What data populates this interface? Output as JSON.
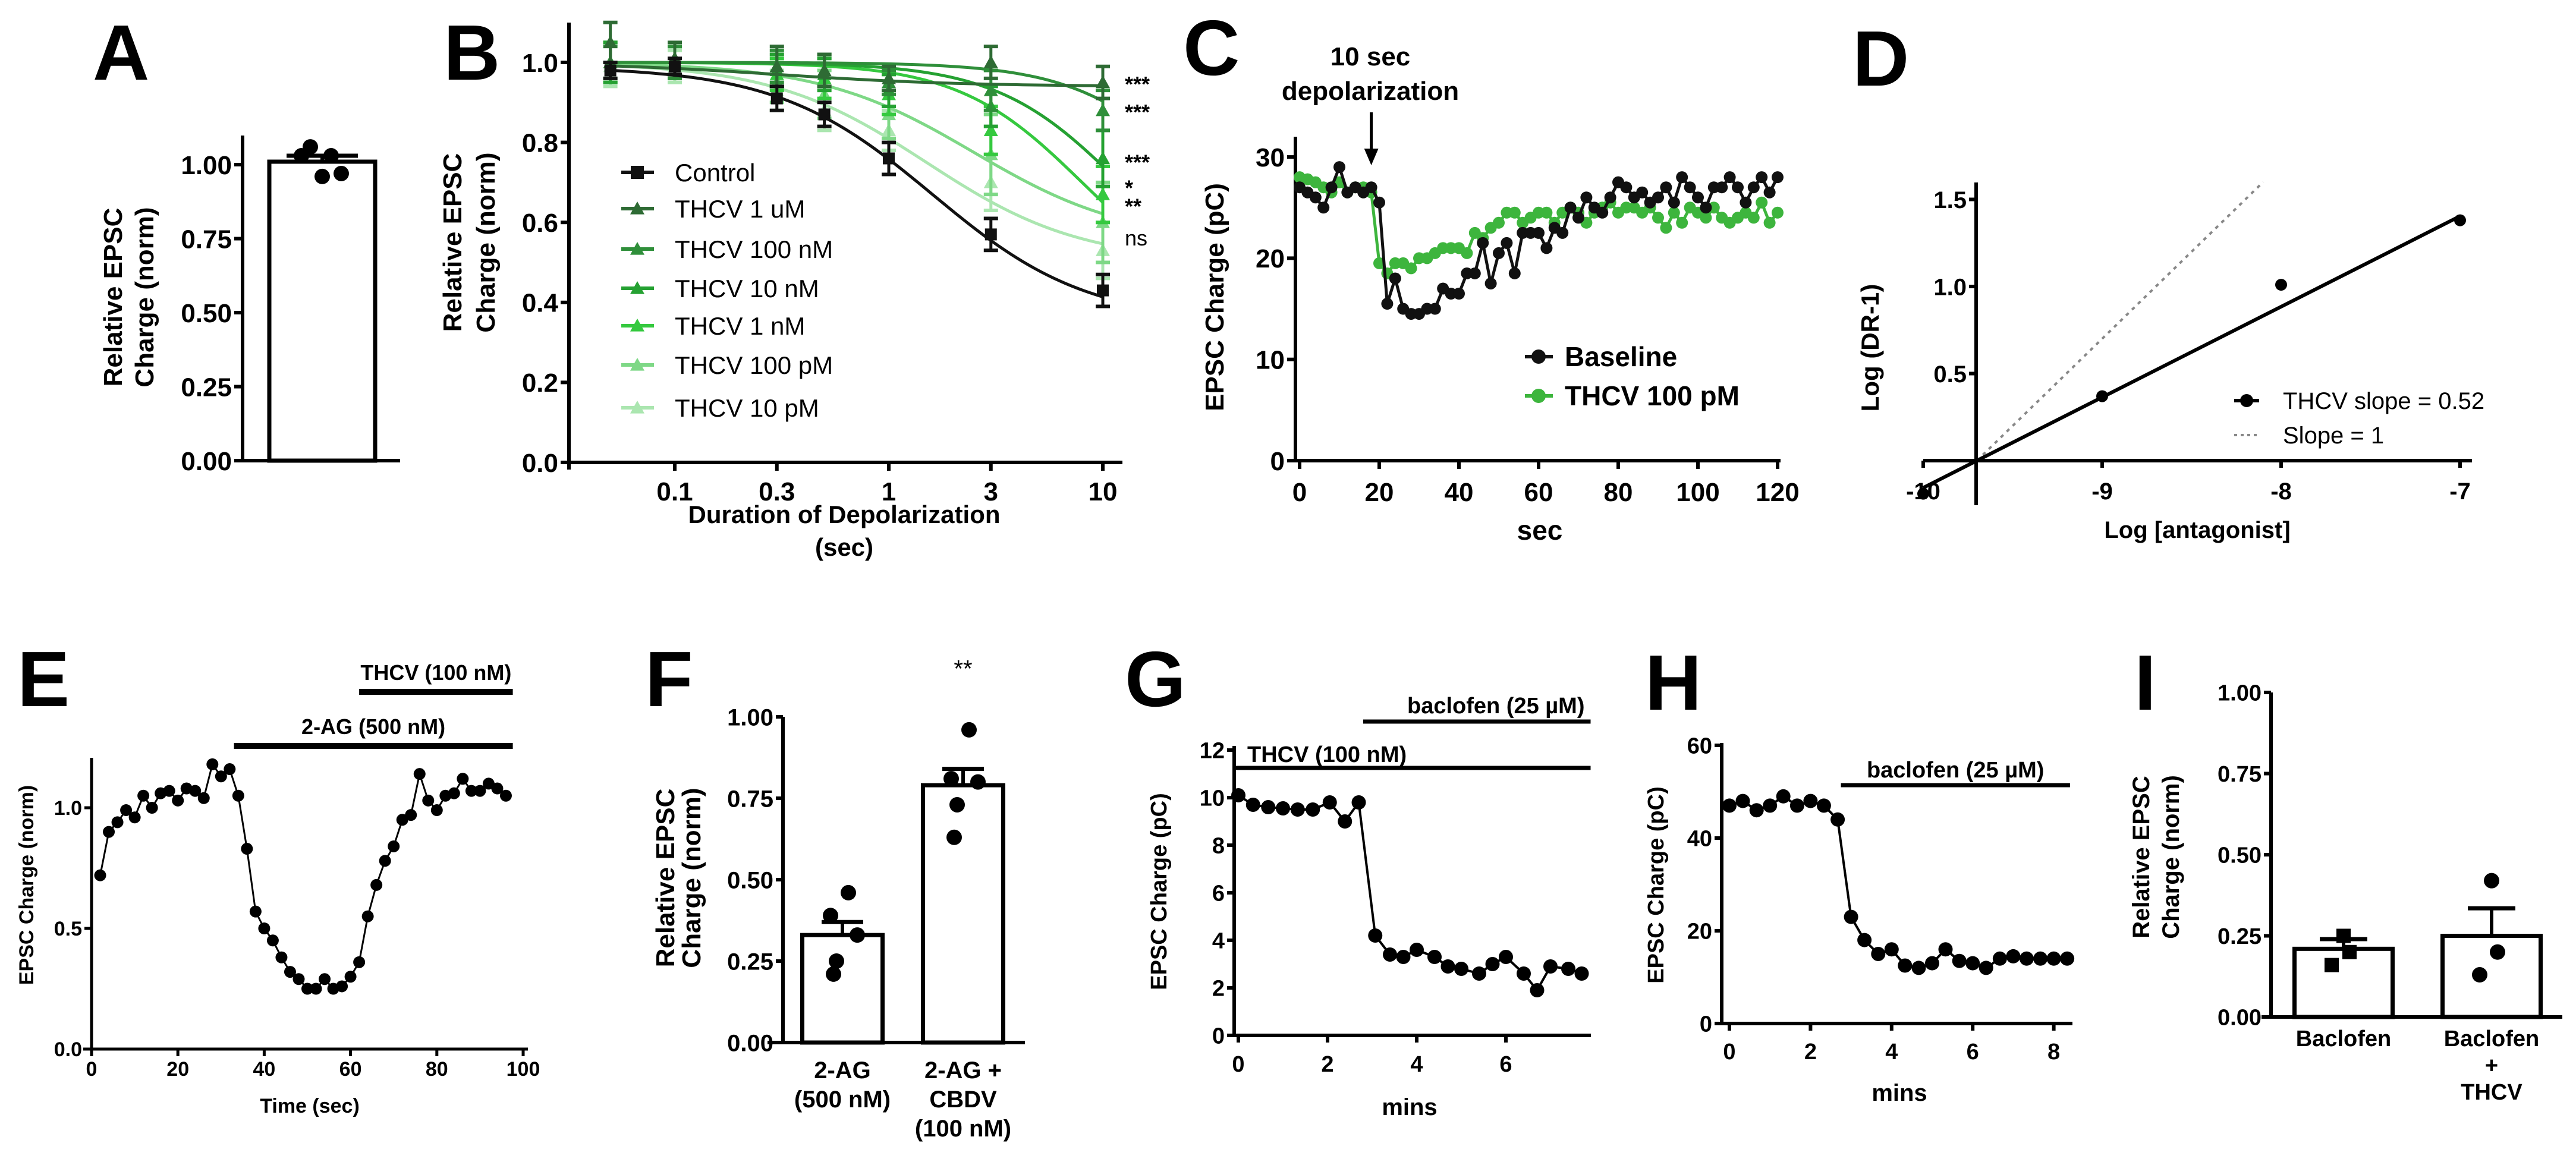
{
  "chart_data": [
    {
      "panel": "A",
      "type": "bar",
      "ylabel": [
        "Relative EPSC",
        "Charge (norm)"
      ],
      "yticks": [
        0,
        0.25,
        0.5,
        0.75,
        1.0
      ],
      "ytick_labels": [
        "0.00",
        "0.25",
        "0.50",
        "0.75",
        "1.00"
      ],
      "ylim": [
        0,
        1.1
      ],
      "bars": [
        {
          "label": "",
          "mean": 1.01,
          "sem": 0.02,
          "points": [
            1.06,
            1.03,
            1.03,
            0.96,
            0.97
          ]
        }
      ]
    },
    {
      "panel": "B",
      "type": "line",
      "xlabel": [
        "Duration of Depolarization",
        "(sec)"
      ],
      "ylabel": [
        "Relative EPSC",
        "Charge (norm)"
      ],
      "xscale": "log",
      "x": [
        0.05,
        0.1,
        0.3,
        0.5,
        1,
        3,
        10
      ],
      "xticks": [
        0.1,
        0.3,
        1,
        3,
        10
      ],
      "xtick_labels": [
        "0.1",
        "0.3",
        "1",
        "3",
        "10"
      ],
      "yticks": [
        0,
        0.2,
        0.4,
        0.6,
        0.8,
        1.0
      ],
      "ytick_labels": [
        "0.0",
        "0.2",
        "0.4",
        "0.6",
        "0.8",
        "1.0"
      ],
      "ylim": [
        0,
        1.1
      ],
      "legend_position": "center-left",
      "series": [
        {
          "name": "Control",
          "marker": "square",
          "color": "#111111",
          "values": [
            0.98,
            0.99,
            0.91,
            0.87,
            0.76,
            0.57,
            0.43
          ],
          "sem": [
            0.02,
            0.02,
            0.03,
            0.03,
            0.04,
            0.04,
            0.04
          ],
          "fit": {
            "top": 0.99,
            "bottom": 0.35,
            "ec50": 1.6,
            "hill": 1.2
          },
          "significance": {
            "label": "",
            "y": 0
          }
        },
        {
          "name": "THCV 1 uM",
          "marker": "triangle",
          "color": "#2e6b34",
          "values": [
            1.05,
            1.01,
            0.99,
            0.98,
            0.96,
            1.0,
            0.95
          ],
          "sem": [
            0.05,
            0.04,
            0.05,
            0.04,
            0.03,
            0.04,
            0.04
          ],
          "fit": {
            "top": 1.0,
            "bottom": 0.94,
            "ec50": 0.3,
            "hill": 1.0
          },
          "significance": {
            "label": "***",
            "y": 0.945
          }
        },
        {
          "name": "THCV 100 nM",
          "marker": "triangle",
          "color": "#2f8f3a",
          "values": [
            1.0,
            1.0,
            0.99,
            0.98,
            0.95,
            0.93,
            0.88
          ],
          "sem": [
            0.04,
            0.04,
            0.04,
            0.04,
            0.03,
            0.05,
            0.05
          ],
          "fit": {
            "top": 1.0,
            "bottom": 0.4,
            "ec50": 30,
            "hill": 1.5
          },
          "significance": {
            "label": "***",
            "y": 0.875
          }
        },
        {
          "name": "THCV 10 nM",
          "marker": "triangle",
          "color": "#25a132",
          "values": [
            1.0,
            1.0,
            0.98,
            0.97,
            0.93,
            0.89,
            0.76
          ],
          "sem": [
            0.05,
            0.04,
            0.04,
            0.04,
            0.04,
            0.05,
            0.07
          ],
          "fit": {
            "top": 1.0,
            "bottom": 0.4,
            "ec50": 12,
            "hill": 1.5
          },
          "significance": {
            "label": "***",
            "y": 0.75
          }
        },
        {
          "name": "THCV 1 nM",
          "marker": "triangle",
          "color": "#35c93f",
          "values": [
            1.0,
            1.0,
            0.97,
            0.96,
            0.92,
            0.83,
            0.67
          ],
          "sem": [
            0.05,
            0.04,
            0.04,
            0.05,
            0.05,
            0.06,
            0.07
          ],
          "fit": {
            "top": 1.0,
            "bottom": 0.4,
            "ec50": 8,
            "hill": 1.5
          },
          "significance": {
            "label": "*",
            "y": 0.686
          }
        },
        {
          "name": "THCV 100 pM",
          "marker": "triangle",
          "color": "#7ed886",
          "values": [
            1.0,
            1.0,
            0.95,
            0.92,
            0.87,
            0.77,
            0.6
          ],
          "sem": [
            0.05,
            0.04,
            0.05,
            0.06,
            0.06,
            0.1,
            0.1
          ],
          "fit": {
            "top": 1.0,
            "bottom": 0.55,
            "ec50": 2.5,
            "hill": 1.2
          },
          "significance": {
            "label": "**",
            "y": 0.64
          }
        },
        {
          "name": "THCV 10 pM",
          "marker": "triangle",
          "color": "#abe6b0",
          "values": [
            0.99,
            0.99,
            0.93,
            0.88,
            0.83,
            0.7,
            0.53
          ],
          "sem": [
            0.05,
            0.04,
            0.05,
            0.05,
            0.05,
            0.07,
            0.07
          ],
          "fit": {
            "top": 1.0,
            "bottom": 0.5,
            "ec50": 1.5,
            "hill": 1.2
          },
          "significance": {
            "label": "ns",
            "y": 0.56
          }
        }
      ]
    },
    {
      "panel": "C",
      "type": "line",
      "title": [
        "10 sec",
        "depolarization"
      ],
      "annotation_x": 18,
      "xlabel": "sec",
      "ylabel": "EPSC Charge (pC)",
      "xticks": [
        0,
        20,
        40,
        60,
        80,
        100,
        120
      ],
      "xtick_labels": [
        "0",
        "20",
        "40",
        "60",
        "80",
        "100",
        "120"
      ],
      "yticks": [
        0,
        10,
        20,
        30
      ],
      "ytick_labels": [
        "0",
        "10",
        "20",
        "30"
      ],
      "xlim": [
        0,
        120
      ],
      "ylim": [
        0,
        32
      ],
      "legend_position": "lower-right",
      "x": [
        0,
        2,
        4,
        6,
        8,
        10,
        12,
        14,
        16,
        18,
        20,
        22,
        24,
        26,
        28,
        30,
        32,
        34,
        36,
        38,
        40,
        42,
        44,
        46,
        48,
        50,
        52,
        54,
        56,
        58,
        60,
        62,
        64,
        66,
        68,
        70,
        72,
        74,
        76,
        78,
        80,
        82,
        84,
        86,
        88,
        90,
        92,
        94,
        96,
        98,
        100,
        102,
        104,
        106,
        108,
        110,
        112,
        114,
        116,
        118,
        120
      ],
      "series": [
        {
          "name": "Baseline",
          "color": "#111111",
          "values": [
            27,
            26.5,
            26,
            25,
            27,
            29,
            26.5,
            27,
            26.5,
            27,
            25.5,
            15.5,
            18,
            15,
            14.5,
            14.5,
            15,
            15,
            17,
            16.5,
            16.5,
            18.5,
            18.5,
            21.5,
            17.5,
            20.5,
            21.5,
            18.5,
            22.5,
            22.5,
            22.5,
            21,
            23,
            22.5,
            25,
            24,
            26,
            25,
            24.5,
            26,
            27.5,
            27,
            26,
            26.5,
            25.5,
            26,
            27,
            25.5,
            28,
            27,
            26,
            25,
            27,
            27,
            28,
            27,
            25.5,
            27,
            28,
            26.5,
            28
          ]
        },
        {
          "name": "THCV 100 pM",
          "color": "#3db53d",
          "values": [
            28,
            27.8,
            27.5,
            27,
            26.5,
            27.5,
            26.5,
            27,
            27,
            26.5,
            19.5,
            18.5,
            19.5,
            19.5,
            19,
            20,
            20,
            20.5,
            21,
            21,
            21,
            20.5,
            22.5,
            22,
            23,
            23.5,
            24.5,
            24.5,
            23.5,
            24,
            24.5,
            24.5,
            23.5,
            24.5,
            25,
            24.5,
            23.5,
            24.5,
            25,
            25.5,
            24.5,
            25,
            25,
            24.5,
            25,
            24,
            23,
            24.5,
            23.5,
            25,
            24.5,
            24,
            25,
            24,
            23.5,
            24,
            24.5,
            24,
            25.5,
            23.5,
            24.5
          ]
        }
      ]
    },
    {
      "panel": "D",
      "type": "scatter",
      "xlabel": "Log [antagonist]",
      "ylabel": "Log (DR-1)",
      "xticks": [
        -10,
        -9,
        -8,
        -7
      ],
      "xtick_labels": [
        "-10",
        "-9",
        "-8",
        "-7"
      ],
      "yticks": [
        0.5,
        1.0,
        1.5
      ],
      "ytick_labels": [
        "0.5",
        "1.0",
        "1.5"
      ],
      "xlim": [
        -10,
        -6.9
      ],
      "ylim": [
        -0.26,
        1.6
      ],
      "legend_position": "lower-right",
      "points": {
        "name": "THCV slope = 0.52",
        "x": [
          -10,
          -9,
          -8,
          -7
        ],
        "y": [
          -0.19,
          0.37,
          1.01,
          1.38
        ]
      },
      "fit_line": {
        "slope": 0.52,
        "x_intercept": -9.7,
        "x_range": [
          -10,
          -7
        ]
      },
      "reference_line": {
        "name": "Slope = 1",
        "slope": 1,
        "x_intercept": -9.7,
        "x_range": [
          -9.7,
          -8.1
        ],
        "color": "#888888"
      }
    },
    {
      "panel": "E",
      "type": "line",
      "xlabel": "Time (sec)",
      "ylabel": "EPSC Charge (norm)",
      "xticks": [
        0,
        20,
        40,
        60,
        80,
        100
      ],
      "xtick_labels": [
        "0",
        "20",
        "40",
        "60",
        "80",
        "100"
      ],
      "yticks": [
        0,
        0.5,
        1.0
      ],
      "ytick_labels": [
        "0.0",
        "0.5",
        "1.0"
      ],
      "xlim": [
        0,
        100
      ],
      "ylim": [
        0,
        1.2
      ],
      "drug_bars": [
        {
          "label": "THCV (100 nM)",
          "start": 62,
          "end": 97.6,
          "level": 2
        },
        {
          "label": "2-AG (500 nM)",
          "start": 33,
          "end": 97.6,
          "level": 1
        }
      ],
      "x": [
        2,
        4,
        6,
        8,
        10,
        12,
        14,
        16,
        18,
        20,
        22,
        24,
        26,
        28,
        30,
        32,
        34,
        36,
        38,
        40,
        42,
        44,
        46,
        48,
        50,
        52,
        54,
        56,
        58,
        60,
        62,
        64,
        66,
        68,
        70,
        72,
        74,
        76,
        78,
        80,
        82,
        84,
        86,
        88,
        90,
        92,
        94,
        96
      ],
      "values": [
        0.72,
        0.9,
        0.94,
        0.99,
        0.96,
        1.05,
        1.0,
        1.06,
        1.07,
        1.03,
        1.08,
        1.07,
        1.04,
        1.18,
        1.13,
        1.16,
        1.05,
        0.83,
        0.57,
        0.5,
        0.45,
        0.38,
        0.32,
        0.29,
        0.25,
        0.25,
        0.29,
        0.25,
        0.26,
        0.3,
        0.36,
        0.55,
        0.68,
        0.78,
        0.84,
        0.95,
        0.97,
        1.14,
        1.03,
        0.99,
        1.05,
        1.06,
        1.12,
        1.07,
        1.07,
        1.1,
        1.08,
        1.05
      ]
    },
    {
      "panel": "F",
      "type": "bar",
      "ylabel": [
        "Relative EPSC",
        "Charge (norm)"
      ],
      "yticks": [
        0,
        0.25,
        0.5,
        0.75,
        1.0
      ],
      "ytick_labels": [
        "0.00",
        "0.25",
        "0.50",
        "0.75",
        "1.00"
      ],
      "ylim": [
        0,
        1.0
      ],
      "bars": [
        {
          "label": [
            "2-AG",
            "(500 nM)"
          ],
          "mean": 0.33,
          "sem": 0.04,
          "points": [
            0.46,
            0.39,
            0.33,
            0.25,
            0.21
          ],
          "significance": ""
        },
        {
          "label": [
            "2-AG +",
            "CBDV",
            "(100 nM)"
          ],
          "mean": 0.79,
          "sem": 0.05,
          "points": [
            0.96,
            0.81,
            0.8,
            0.73,
            0.63
          ],
          "significance": "**"
        }
      ]
    },
    {
      "panel": "G",
      "type": "line",
      "xlabel": "mins",
      "ylabel": "EPSC Charge (pC)",
      "xticks": [
        0,
        2,
        4,
        6
      ],
      "xtick_labels": [
        "0",
        "2",
        "4",
        "6"
      ],
      "yticks": [
        0,
        2,
        4,
        6,
        8,
        10,
        12
      ],
      "ytick_labels": [
        "0",
        "2",
        "4",
        "6",
        "8",
        "10",
        "12"
      ],
      "xlim": [
        0,
        7.9
      ],
      "ylim": [
        0,
        12
      ],
      "drug_bars": [
        {
          "label": "baclofen (25 µM)",
          "start": 2.8,
          "end": 7.9,
          "level": 2
        },
        {
          "label": "THCV (100 nM)",
          "start": -0.1,
          "end": 7.9,
          "level": 1
        }
      ],
      "x": [
        0,
        0.33,
        0.67,
        1,
        1.33,
        1.67,
        2.05,
        2.39,
        2.7,
        3.07,
        3.4,
        3.7,
        4.0,
        4.4,
        4.7,
        5.0,
        5.4,
        5.7,
        6.0,
        6.4,
        6.7,
        7.0,
        7.4,
        7.7
      ],
      "values": [
        10.1,
        9.7,
        9.6,
        9.55,
        9.5,
        9.5,
        9.8,
        9.0,
        9.8,
        4.2,
        3.4,
        3.3,
        3.6,
        3.3,
        2.9,
        2.8,
        2.6,
        3.0,
        3.3,
        2.6,
        1.9,
        2.9,
        2.8,
        2.6
      ]
    },
    {
      "panel": "H",
      "type": "line",
      "xlabel": "mins",
      "ylabel": "EPSC Charge (pC)",
      "xticks": [
        0,
        2,
        4,
        6,
        8
      ],
      "xtick_labels": [
        "0",
        "2",
        "4",
        "6",
        "8"
      ],
      "yticks": [
        0,
        20,
        40,
        60
      ],
      "ytick_labels": [
        "0",
        "20",
        "40",
        "60"
      ],
      "xlim": [
        0,
        8.4
      ],
      "ylim": [
        0,
        60
      ],
      "drug_bars": [
        {
          "label": "baclofen (25 µM)",
          "start": 2.75,
          "end": 8.4,
          "level": 1
        }
      ],
      "x": [
        0,
        0.33,
        0.67,
        1,
        1.33,
        1.67,
        2,
        2.33,
        2.67,
        3,
        3.33,
        3.67,
        4,
        4.33,
        4.67,
        5,
        5.33,
        5.67,
        6,
        6.33,
        6.67,
        7,
        7.33,
        7.67,
        8,
        8.33
      ],
      "values": [
        47,
        48,
        46,
        47,
        49,
        47,
        48,
        47,
        44,
        23,
        18,
        15,
        16,
        12.5,
        12,
        13,
        16,
        13.5,
        13,
        12,
        14,
        14.5,
        14,
        14,
        14,
        14
      ]
    },
    {
      "panel": "I",
      "type": "bar",
      "ylabel": [
        "Relative EPSC",
        "Charge (norm)"
      ],
      "yticks": [
        0,
        0.25,
        0.5,
        0.75,
        1.0
      ],
      "ytick_labels": [
        "0.00",
        "0.25",
        "0.50",
        "0.75",
        "1.00"
      ],
      "ylim": [
        0,
        1.0
      ],
      "bars": [
        {
          "label": [
            "Baclofen"
          ],
          "mean": 0.21,
          "sem": 0.03,
          "points": [
            0.25,
            0.2,
            0.16
          ],
          "marker": "square"
        },
        {
          "label": [
            "Baclofen",
            "+",
            "THCV"
          ],
          "mean": 0.25,
          "sem": 0.085,
          "points": [
            0.42,
            0.2,
            0.13
          ],
          "marker": "circle"
        }
      ]
    }
  ]
}
